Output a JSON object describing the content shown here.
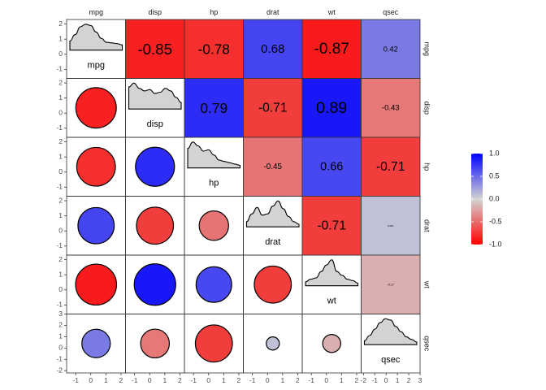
{
  "chart_data": {
    "type": "heatmap",
    "variables": [
      "mpg",
      "disp",
      "hp",
      "drat",
      "wt",
      "qsec"
    ],
    "correlations": [
      [
        1.0,
        -0.85,
        -0.78,
        0.68,
        -0.87,
        0.42
      ],
      [
        -0.85,
        1.0,
        0.79,
        -0.71,
        0.89,
        -0.43
      ],
      [
        -0.78,
        0.79,
        1.0,
        -0.45,
        0.66,
        -0.71
      ],
      [
        0.68,
        -0.71,
        -0.45,
        1.0,
        -0.71,
        0.091
      ],
      [
        -0.87,
        0.89,
        0.66,
        -0.71,
        1.0,
        -0.17
      ],
      [
        0.42,
        -0.43,
        -0.71,
        0.091,
        -0.17,
        1.0
      ]
    ],
    "upper_labels": [
      {
        "row": 0,
        "col": 1,
        "text": "-0.85"
      },
      {
        "row": 0,
        "col": 2,
        "text": "-0.78"
      },
      {
        "row": 0,
        "col": 3,
        "text": "0.68"
      },
      {
        "row": 0,
        "col": 4,
        "text": "-0.87"
      },
      {
        "row": 0,
        "col": 5,
        "text": "0.42"
      },
      {
        "row": 1,
        "col": 2,
        "text": "0.79"
      },
      {
        "row": 1,
        "col": 3,
        "text": "-0.71"
      },
      {
        "row": 1,
        "col": 4,
        "text": "0.89"
      },
      {
        "row": 1,
        "col": 5,
        "text": "-0.43"
      },
      {
        "row": 2,
        "col": 3,
        "text": "-0.45"
      },
      {
        "row": 2,
        "col": 4,
        "text": "0.66"
      },
      {
        "row": 2,
        "col": 5,
        "text": "-0.71"
      },
      {
        "row": 3,
        "col": 4,
        "text": "-0.71"
      },
      {
        "row": 3,
        "col": 5,
        "text": "0.091"
      },
      {
        "row": 4,
        "col": 5,
        "text": "-0.17"
      }
    ],
    "diagonal_labels": [
      "mpg",
      "disp",
      "hp",
      "drat",
      "wt",
      "qsec"
    ],
    "densities": [
      [
        0.35,
        0.6,
        0.9,
        1.0,
        0.95,
        0.7,
        0.45,
        0.3,
        0.28,
        0.25,
        0.2
      ],
      [
        0.85,
        1.0,
        0.8,
        0.7,
        0.75,
        0.6,
        0.65,
        0.8,
        0.7,
        0.45,
        0.25
      ],
      [
        0.75,
        1.0,
        0.85,
        0.65,
        0.7,
        0.5,
        0.3,
        0.25,
        0.2,
        0.15,
        0.1
      ],
      [
        0.2,
        0.5,
        0.75,
        0.45,
        0.5,
        0.8,
        1.0,
        0.7,
        0.4,
        0.2,
        0.1
      ],
      [
        0.15,
        0.25,
        0.3,
        0.55,
        0.8,
        1.0,
        0.55,
        0.4,
        0.25,
        0.2,
        0.1
      ],
      [
        0.15,
        0.35,
        0.6,
        0.85,
        1.0,
        0.95,
        0.7,
        0.5,
        0.3,
        0.2,
        0.1
      ]
    ],
    "y_axis": {
      "ticks": [
        [
          "-1",
          "0",
          "1",
          "2"
        ],
        [
          "-1",
          "0",
          "1",
          "2"
        ],
        [
          "-1",
          "0",
          "1",
          "2"
        ],
        [
          "-1",
          "0",
          "1",
          "2"
        ],
        [
          "-1",
          "0",
          "1",
          "2"
        ],
        [
          "-2",
          "-1",
          "0",
          "1",
          "2",
          "3"
        ]
      ],
      "ranges": [
        [
          -1.6,
          2.3
        ],
        [
          -1.6,
          2.3
        ],
        [
          -1.6,
          2.3
        ],
        [
          -1.6,
          2.3
        ],
        [
          -1.6,
          2.3
        ],
        [
          -2.2,
          3.0
        ]
      ]
    },
    "x_axis": {
      "ticks": [
        [
          "-1",
          "0",
          "1",
          "2"
        ],
        [
          "-1",
          "0",
          "1",
          "2"
        ],
        [
          "-1",
          "0",
          "1",
          "2"
        ],
        [
          "-1",
          "0",
          "1",
          "2"
        ],
        [
          "-1",
          "0",
          "1",
          "2"
        ],
        [
          "-2",
          "-1",
          "0",
          "1",
          "2",
          "3"
        ]
      ],
      "ranges": [
        [
          -1.6,
          2.3
        ],
        [
          -1.6,
          2.3
        ],
        [
          -1.6,
          2.3
        ],
        [
          -1.6,
          2.3
        ],
        [
          -1.6,
          2.3
        ],
        [
          -2.2,
          3.0
        ]
      ]
    },
    "legend": {
      "position": "right",
      "ticks": [
        "1.0",
        "0.5",
        "0.0",
        "-0.5",
        "-1.0"
      ],
      "tick_values": [
        1.0,
        0.5,
        0.0,
        -0.5,
        -1.0
      ],
      "range": [
        -1.0,
        1.0
      ]
    },
    "colors": {
      "negative": "#ff0000",
      "neutral": "#d3d3d3",
      "positive": "#0000ff",
      "density_fill": "#d3d3d3"
    },
    "grid": false
  }
}
